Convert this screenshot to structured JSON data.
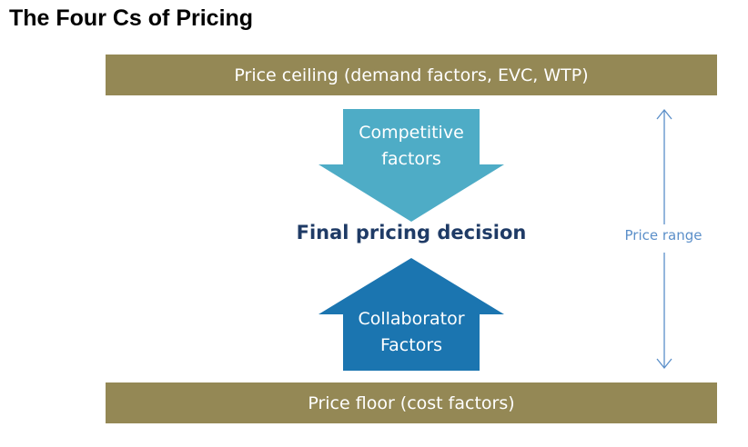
{
  "title": "The Four Cs of Pricing",
  "price_ceiling": "Price ceiling (demand factors, EVC, WTP)",
  "price_floor": "Price floor (cost factors)",
  "competitive": {
    "line1": "Competitive",
    "line2": "factors"
  },
  "collaborator": {
    "line1": "Collaborator",
    "line2": "Factors"
  },
  "decision": "Final pricing decision",
  "price_range": "Price range",
  "colors": {
    "band": "#948855",
    "competitive_arrow": "#4eacc6",
    "collaborator_arrow": "#1b75b0",
    "decision_text": "#1f3b66",
    "range_color": "#5b8fc9"
  }
}
